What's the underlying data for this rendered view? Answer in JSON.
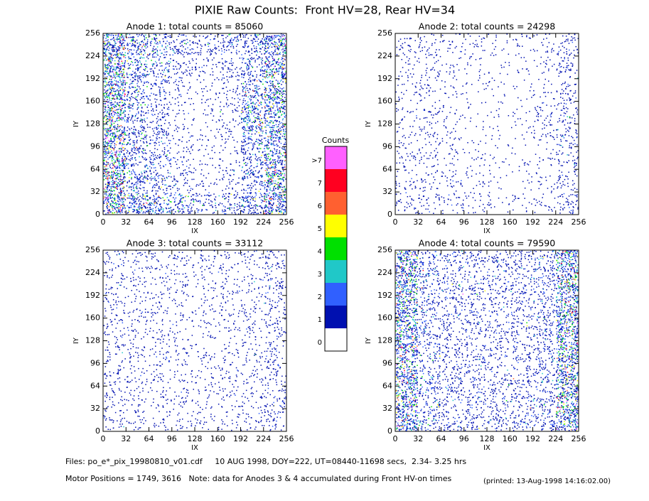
{
  "title": "PIXIE Raw Counts:  Front HV=28, Rear HV=34",
  "colorbar": {
    "title": "Counts",
    "labels": [
      0,
      1,
      2,
      3,
      4,
      5,
      6,
      7,
      ">7"
    ],
    "colors": [
      "#ffffff",
      "#0010b0",
      "#3060ff",
      "#20c8c8",
      "#00e000",
      "#ffff00",
      "#ff6030",
      "#ff0020",
      "#ff60ff"
    ]
  },
  "footer": {
    "files": "Files: po_e*_pix_19980810_v01.cdf     10 AUG 1998, DOY=222, UT=08440-11698 secs,  2.34- 3.25 hrs",
    "motor": "Motor Positions = 1749, 3616   Note: data for Anodes 3 & 4 accumulated during Front HV-on times",
    "printed": "(printed: 13-Aug-1998 14:16:02.00)"
  },
  "chart_data": [
    {
      "type": "heatmap",
      "title": "Anode 1: total counts = 85060",
      "xlabel": "IX",
      "ylabel": "IY",
      "xlim": [
        0,
        256
      ],
      "ylim": [
        0,
        256
      ],
      "xticks": [
        0,
        32,
        64,
        96,
        128,
        160,
        192,
        224,
        256
      ],
      "yticks": [
        0,
        32,
        64,
        96,
        128,
        160,
        192,
        224,
        256
      ],
      "values": [
        [
          3.5,
          2,
          1.5,
          1.2,
          1,
          1.2,
          1.5,
          3
        ],
        [
          3.5,
          1.8,
          1.2,
          0.8,
          0.6,
          0.8,
          1.5,
          3
        ],
        [
          3.5,
          1.5,
          1,
          0.5,
          0.4,
          0.6,
          1.8,
          2.5
        ],
        [
          3.5,
          1.5,
          1,
          0.4,
          0.3,
          0.6,
          2.5,
          2.5
        ],
        [
          3.5,
          1.5,
          1.2,
          0.5,
          0.3,
          0.5,
          2,
          2.5
        ],
        [
          3.5,
          1.5,
          1.2,
          0.6,
          0.3,
          0.4,
          1.5,
          2.5
        ],
        [
          3.5,
          1.8,
          1.3,
          0.8,
          0.4,
          0.6,
          1.5,
          3
        ],
        [
          3.5,
          2.5,
          2,
          1.5,
          1,
          1.2,
          2,
          3.5
        ]
      ]
    },
    {
      "type": "heatmap",
      "title": "Anode 2: total counts = 24298",
      "xlabel": "IX",
      "ylabel": "IY",
      "xlim": [
        0,
        256
      ],
      "ylim": [
        0,
        256
      ],
      "xticks": [
        0,
        32,
        64,
        96,
        128,
        160,
        192,
        224,
        256
      ],
      "yticks": [
        0,
        32,
        64,
        96,
        128,
        160,
        192,
        224,
        256
      ],
      "values": [
        [
          0.5,
          0.6,
          0.4,
          0.4,
          0.3,
          0.3,
          0.4,
          0.8
        ],
        [
          0.4,
          0.5,
          0.3,
          0.3,
          0.2,
          0.2,
          0.3,
          0.8
        ],
        [
          0.4,
          0.5,
          0.3,
          0.2,
          0.2,
          0.2,
          0.3,
          0.7
        ],
        [
          0.4,
          0.5,
          0.3,
          0.2,
          0.2,
          0.2,
          0.6,
          0.8
        ],
        [
          0.4,
          0.5,
          0.4,
          0.2,
          0.2,
          0.2,
          0.5,
          0.8
        ],
        [
          0.5,
          0.5,
          0.3,
          0.3,
          0.2,
          0.2,
          0.3,
          0.7
        ],
        [
          0.5,
          0.5,
          0.5,
          0.3,
          0.2,
          0.2,
          0.3,
          0.7
        ],
        [
          0.6,
          0.6,
          0.5,
          0.4,
          0.3,
          0.3,
          0.4,
          0.9
        ]
      ]
    },
    {
      "type": "heatmap",
      "title": "Anode 3: total counts = 33112",
      "xlabel": "IX",
      "ylabel": "IY",
      "xlim": [
        0,
        256
      ],
      "ylim": [
        0,
        256
      ],
      "xticks": [
        0,
        32,
        64,
        96,
        128,
        160,
        192,
        224,
        256
      ],
      "yticks": [
        0,
        32,
        64,
        96,
        128,
        160,
        192,
        224,
        256
      ],
      "values": [
        [
          0.6,
          0.5,
          0.5,
          0.5,
          0.5,
          0.5,
          0.5,
          0.8
        ],
        [
          0.6,
          0.5,
          0.5,
          0.5,
          0.4,
          0.5,
          0.5,
          0.8
        ],
        [
          0.6,
          0.5,
          0.5,
          0.4,
          0.4,
          0.5,
          0.5,
          0.7
        ],
        [
          0.6,
          0.5,
          0.5,
          0.4,
          0.4,
          0.4,
          0.5,
          0.7
        ],
        [
          0.6,
          0.5,
          0.5,
          0.4,
          0.4,
          0.4,
          0.5,
          0.7
        ],
        [
          0.6,
          0.5,
          0.5,
          0.4,
          0.4,
          0.5,
          0.5,
          0.7
        ],
        [
          0.6,
          0.5,
          0.5,
          0.5,
          0.4,
          0.5,
          0.5,
          0.8
        ],
        [
          0.6,
          0.5,
          0.4,
          0.4,
          0.4,
          0.4,
          0.5,
          0.8
        ]
      ]
    },
    {
      "type": "heatmap",
      "title": "Anode 4: total counts = 79590",
      "xlabel": "IX",
      "ylabel": "IY",
      "xlim": [
        0,
        256
      ],
      "ylim": [
        0,
        256
      ],
      "xticks": [
        0,
        32,
        64,
        96,
        128,
        160,
        192,
        224,
        256
      ],
      "yticks": [
        0,
        32,
        64,
        96,
        128,
        160,
        192,
        224,
        256
      ],
      "values": [
        [
          3,
          1.2,
          1,
          1,
          1,
          1,
          1.2,
          3
        ],
        [
          3,
          1.2,
          1,
          0.9,
          0.9,
          1,
          1.1,
          3
        ],
        [
          3,
          1.1,
          1,
          0.9,
          0.8,
          0.9,
          1.1,
          3
        ],
        [
          3,
          1.1,
          0.9,
          0.9,
          0.8,
          0.9,
          1.1,
          3
        ],
        [
          3,
          1.1,
          0.9,
          0.9,
          0.8,
          0.9,
          1.1,
          3
        ],
        [
          3,
          1.1,
          1,
          0.9,
          0.8,
          0.9,
          1.1,
          3
        ],
        [
          3,
          1.2,
          1,
          1,
          0.9,
          1,
          1.1,
          3
        ],
        [
          3,
          1.3,
          1,
          1,
          1,
          1,
          1.2,
          3
        ]
      ]
    }
  ]
}
